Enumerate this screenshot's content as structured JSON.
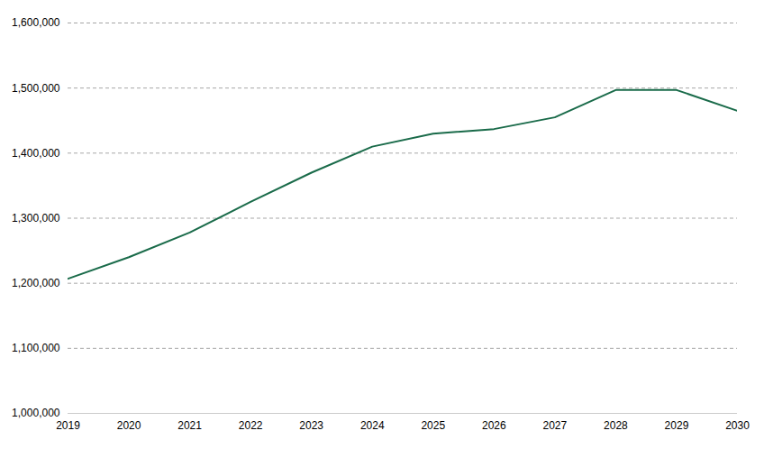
{
  "chart_data": {
    "type": "line",
    "x": [
      2019,
      2020,
      2021,
      2022,
      2023,
      2024,
      2025,
      2026,
      2027,
      2028,
      2029,
      2030
    ],
    "values": [
      1207000,
      1240000,
      1278000,
      1325000,
      1370000,
      1410000,
      1430000,
      1437000,
      1455000,
      1497000,
      1497000,
      1465000
    ],
    "color": "#1a6b4a",
    "xlim": [
      2019,
      2030
    ],
    "xticks": [
      2019,
      2020,
      2021,
      2022,
      2023,
      2024,
      2025,
      2026,
      2027,
      2028,
      2029,
      2030
    ],
    "ylim": [
      1000000,
      1600000
    ],
    "yticks": [
      {
        "value": 1000000,
        "label": "1,000,000"
      },
      {
        "value": 1100000,
        "label": "1,100,000"
      },
      {
        "value": 1200000,
        "label": "1,200,000"
      },
      {
        "value": 1300000,
        "label": "1,300,000"
      },
      {
        "value": 1400000,
        "label": "1,400,000"
      },
      {
        "value": 1500000,
        "label": "1,500,000"
      },
      {
        "value": 1600000,
        "label": "1,600,000"
      }
    ],
    "grid": true
  }
}
